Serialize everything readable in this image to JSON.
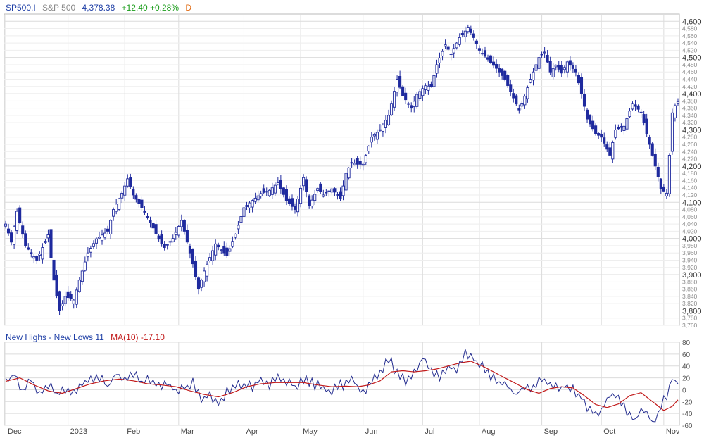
{
  "header": {
    "symbol": "SP500.I",
    "name": "S&P 500",
    "price": "4,378.38",
    "change": "+12.40 +0.28%",
    "frequency": "D"
  },
  "indicator_header": {
    "label": "New Highs - New Lows 11",
    "ma_label": "MA(10) -17.10"
  },
  "colors": {
    "candle": "#1f2a9e",
    "ma_line": "#c21a1a",
    "indicator_line": "#232c8f",
    "grid": "#dcdcdc",
    "axis_text": "#555555",
    "frame": "#b8b8b8"
  },
  "chart_data": [
    {
      "type": "candlestick",
      "title": "S&P 500",
      "ylim": [
        3760,
        4620
      ],
      "y_major_ticks": [
        3800,
        3900,
        4000,
        4100,
        4200,
        4300,
        4400,
        4500,
        4600
      ],
      "y_major_labels": [
        "3,800",
        "3,900",
        "4,000",
        "4,100",
        "4,200",
        "4,300",
        "4,400",
        "4,500",
        "4,600"
      ],
      "y_minor_ticks": [
        3760,
        3780,
        3820,
        3840,
        3860,
        3880,
        3920,
        3940,
        3960,
        3980,
        4020,
        4040,
        4060,
        4080,
        4120,
        4140,
        4160,
        4180,
        4220,
        4240,
        4260,
        4280,
        4320,
        4340,
        4360,
        4380,
        4420,
        4440,
        4460,
        4480,
        4520,
        4540,
        4560,
        4580
      ],
      "y_minor_labels": [
        "3,760",
        "3,780",
        "3,820",
        "3,840",
        "3,860",
        "3,880",
        "3,920",
        "3,940",
        "3,960",
        "3,980",
        "4,020",
        "4,040",
        "4,060",
        "4,080",
        "4,120",
        "4,140",
        "4,160",
        "4,180",
        "4,220",
        "4,240",
        "4,260",
        "4,280",
        "4,320",
        "4,340",
        "4,360",
        "4,380",
        "4,420",
        "4,440",
        "4,460",
        "4,480",
        "4,520",
        "4,540",
        "4,560",
        "4,580"
      ],
      "x_labels": [
        "Dec",
        "2023",
        "Feb",
        "Mar",
        "Apr",
        "May",
        "Jun",
        "Jul",
        "Aug",
        "Sep",
        "Oct",
        "Nov"
      ],
      "x_label_days": [
        0,
        22,
        42,
        61,
        84,
        104,
        126,
        147,
        167,
        189,
        210,
        232
      ],
      "bars": 238,
      "anchors": [
        [
          0,
          4040
        ],
        [
          2,
          3990
        ],
        [
          4,
          4075
        ],
        [
          7,
          3980
        ],
        [
          11,
          3940
        ],
        [
          15,
          4010
        ],
        [
          17,
          3885
        ],
        [
          19,
          3800
        ],
        [
          21,
          3840
        ],
        [
          24,
          3830
        ],
        [
          26,
          3885
        ],
        [
          29,
          3960
        ],
        [
          32,
          3999
        ],
        [
          36,
          4020
        ],
        [
          38,
          4080
        ],
        [
          41,
          4125
        ],
        [
          43,
          4165
        ],
        [
          45,
          4120
        ],
        [
          48,
          4085
        ],
        [
          50,
          4060
        ],
        [
          54,
          3998
        ],
        [
          56,
          3975
        ],
        [
          59,
          4000
        ],
        [
          62,
          4050
        ],
        [
          64,
          3990
        ],
        [
          66,
          3930
        ],
        [
          68,
          3860
        ],
        [
          70,
          3910
        ],
        [
          74,
          3985
        ],
        [
          78,
          3952
        ],
        [
          81,
          4012
        ],
        [
          84,
          4085
        ],
        [
          87,
          4105
        ],
        [
          90,
          4124
        ],
        [
          93,
          4133
        ],
        [
          96,
          4154
        ],
        [
          99,
          4105
        ],
        [
          102,
          4080
        ],
        [
          105,
          4168
        ],
        [
          107,
          4090
        ],
        [
          110,
          4138
        ],
        [
          112,
          4120
        ],
        [
          115,
          4137
        ],
        [
          118,
          4110
        ],
        [
          120,
          4180
        ],
        [
          122,
          4210
        ],
        [
          124,
          4205
        ],
        [
          126,
          4205
        ],
        [
          129,
          4280
        ],
        [
          132,
          4300
        ],
        [
          135,
          4340
        ],
        [
          138,
          4440
        ],
        [
          140,
          4395
        ],
        [
          143,
          4360
        ],
        [
          145,
          4398
        ],
        [
          148,
          4422
        ],
        [
          150,
          4420
        ],
        [
          152,
          4480
        ],
        [
          155,
          4535
        ],
        [
          157,
          4510
        ],
        [
          160,
          4555
        ],
        [
          163,
          4582
        ],
        [
          165,
          4555
        ],
        [
          167,
          4520
        ],
        [
          170,
          4495
        ],
        [
          173,
          4470
        ],
        [
          176,
          4440
        ],
        [
          178,
          4405
        ],
        [
          181,
          4355
        ],
        [
          183,
          4393
        ],
        [
          185,
          4440
        ],
        [
          188,
          4500
        ],
        [
          190,
          4515
        ],
        [
          192,
          4460
        ],
        [
          194,
          4478
        ],
        [
          196,
          4457
        ],
        [
          198,
          4488
        ],
        [
          201,
          4460
        ],
        [
          203,
          4400
        ],
        [
          205,
          4330
        ],
        [
          208,
          4290
        ],
        [
          210,
          4280
        ],
        [
          213,
          4230
        ],
        [
          215,
          4300
        ],
        [
          218,
          4310
        ],
        [
          221,
          4373
        ],
        [
          224,
          4349
        ],
        [
          226,
          4290
        ],
        [
          228,
          4230
        ],
        [
          230,
          4170
        ],
        [
          231,
          4137
        ],
        [
          233,
          4125
        ],
        [
          234,
          4230
        ],
        [
          235,
          4347
        ],
        [
          236,
          4367
        ],
        [
          237,
          4378
        ]
      ],
      "last_close": 4378.38,
      "last_change": 12.4,
      "last_change_pct": 0.28
    },
    {
      "type": "line",
      "title": "New Highs - New Lows",
      "ylim": [
        -60,
        80
      ],
      "y_ticks": [
        -60,
        -40,
        -20,
        0,
        20,
        40,
        60,
        80
      ],
      "y_labels": [
        "-60",
        "-40",
        "-20",
        "0",
        "20",
        "40",
        "60",
        "80"
      ],
      "series": [
        {
          "name": "New Highs - New Lows",
          "last_value": 11,
          "anchors": [
            [
              0,
              12
            ],
            [
              3,
              25
            ],
            [
              6,
              -2
            ],
            [
              9,
              18
            ],
            [
              12,
              -8
            ],
            [
              15,
              10
            ],
            [
              18,
              -12
            ],
            [
              21,
              2
            ],
            [
              24,
              -5
            ],
            [
              27,
              8
            ],
            [
              30,
              15
            ],
            [
              33,
              22
            ],
            [
              36,
              5
            ],
            [
              39,
              30
            ],
            [
              42,
              15
            ],
            [
              45,
              28
            ],
            [
              48,
              10
            ],
            [
              51,
              18
            ],
            [
              54,
              5
            ],
            [
              57,
              10
            ],
            [
              60,
              -2
            ],
            [
              63,
              5
            ],
            [
              66,
              12
            ],
            [
              69,
              -15
            ],
            [
              72,
              -10
            ],
            [
              75,
              -25
            ],
            [
              78,
              -5
            ],
            [
              81,
              12
            ],
            [
              84,
              8
            ],
            [
              87,
              5
            ],
            [
              90,
              15
            ],
            [
              93,
              10
            ],
            [
              96,
              20
            ],
            [
              99,
              14
            ],
            [
              102,
              5
            ],
            [
              105,
              18
            ],
            [
              108,
              10
            ],
            [
              111,
              8
            ],
            [
              114,
              -2
            ],
            [
              117,
              5
            ],
            [
              120,
              10
            ],
            [
              122,
              20
            ],
            [
              124,
              5
            ],
            [
              126,
              -3
            ],
            [
              129,
              12
            ],
            [
              132,
              30
            ],
            [
              135,
              50
            ],
            [
              138,
              30
            ],
            [
              141,
              15
            ],
            [
              144,
              25
            ],
            [
              147,
              55
            ],
            [
              150,
              35
            ],
            [
              153,
              20
            ],
            [
              156,
              40
            ],
            [
              159,
              30
            ],
            [
              162,
              60
            ],
            [
              165,
              50
            ],
            [
              168,
              40
            ],
            [
              171,
              25
            ],
            [
              174,
              10
            ],
            [
              177,
              5
            ],
            [
              180,
              -8
            ],
            [
              183,
              8
            ],
            [
              186,
              5
            ],
            [
              189,
              20
            ],
            [
              192,
              8
            ],
            [
              195,
              4
            ],
            [
              198,
              6
            ],
            [
              201,
              -3
            ],
            [
              204,
              -20
            ],
            [
              207,
              -40
            ],
            [
              210,
              -35
            ],
            [
              213,
              -5
            ],
            [
              216,
              -15
            ],
            [
              219,
              -35
            ],
            [
              222,
              -50
            ],
            [
              225,
              -30
            ],
            [
              228,
              -55
            ],
            [
              230,
              -40
            ],
            [
              232,
              -20
            ],
            [
              234,
              5
            ],
            [
              235,
              22
            ],
            [
              236,
              15
            ],
            [
              237,
              11
            ]
          ]
        },
        {
          "name": "MA(10)",
          "last_value": -17.1,
          "anchors": [
            [
              0,
              14
            ],
            [
              5,
              20
            ],
            [
              10,
              8
            ],
            [
              15,
              -2
            ],
            [
              20,
              -6
            ],
            [
              25,
              2
            ],
            [
              30,
              10
            ],
            [
              35,
              15
            ],
            [
              40,
              18
            ],
            [
              45,
              15
            ],
            [
              50,
              10
            ],
            [
              55,
              8
            ],
            [
              60,
              5
            ],
            [
              65,
              -2
            ],
            [
              70,
              -8
            ],
            [
              75,
              -12
            ],
            [
              80,
              -5
            ],
            [
              85,
              5
            ],
            [
              90,
              10
            ],
            [
              95,
              12
            ],
            [
              100,
              12
            ],
            [
              105,
              12
            ],
            [
              110,
              8
            ],
            [
              115,
              5
            ],
            [
              120,
              6
            ],
            [
              124,
              5
            ],
            [
              128,
              8
            ],
            [
              132,
              15
            ],
            [
              136,
              30
            ],
            [
              140,
              32
            ],
            [
              144,
              30
            ],
            [
              148,
              32
            ],
            [
              152,
              35
            ],
            [
              156,
              40
            ],
            [
              160,
              45
            ],
            [
              164,
              48
            ],
            [
              168,
              40
            ],
            [
              172,
              30
            ],
            [
              176,
              20
            ],
            [
              180,
              10
            ],
            [
              184,
              0
            ],
            [
              188,
              -6
            ],
            [
              192,
              2
            ],
            [
              196,
              5
            ],
            [
              200,
              3
            ],
            [
              204,
              -10
            ],
            [
              208,
              -25
            ],
            [
              212,
              -30
            ],
            [
              216,
              -24
            ],
            [
              220,
              -10
            ],
            [
              224,
              -5
            ],
            [
              228,
              -20
            ],
            [
              232,
              -35
            ],
            [
              235,
              -28
            ],
            [
              237,
              -17.1
            ]
          ]
        }
      ]
    }
  ]
}
